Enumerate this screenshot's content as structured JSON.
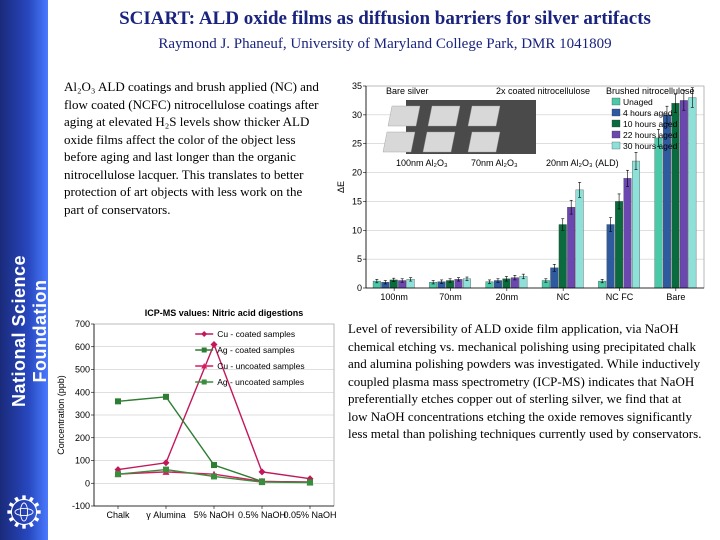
{
  "sidebar": {
    "org": "National Science Foundation"
  },
  "title": "SCIART: ALD oxide films as diffusion barriers for silver artifacts",
  "subtitle": "Raymond J. Phaneuf, University of Maryland College Park, DMR 1041809",
  "para1": "Al₂O₃ ALD coatings and brush applied (NC) and flow coated (NCFC) nitrocellulose coatings after aging at elevated H₂S levels show thicker ALD oxide films affect the color of the object less before aging and last longer than the organic nitrocellulose  lacquer. This translates to better protection of art objects with less work on the part of conservators.",
  "para2": "Level of reversibility of ALD oxide film application, via NaOH chemical etching vs. mechanical polishing using precipitated chalk and alumina polishing powders was investigated. While inductively coupled plasma mass spectrometry (ICP-MS) indicates that NaOH preferentially etches copper out of sterling silver, we find that at low NaOH concentrations etching the oxide removes significantly less metal than polishing techniques currently used by conservators.",
  "chart1": {
    "type": "bar",
    "ylabel": "ΔE",
    "ylim": [
      0,
      35
    ],
    "ytick": 5,
    "top_labels": [
      "Bare silver",
      "2x coated nitrocellulose",
      "Brushed nitrocellulose"
    ],
    "mid_labels": [
      "100nm Al₂O₃",
      "70nm Al₂O₃",
      "20nm Al₂O₃ (ALD)"
    ],
    "categories": [
      "100nm",
      "70nm",
      "20nm",
      "NC",
      "NC FC",
      "Bare"
    ],
    "series": [
      {
        "name": "Unaged",
        "color": "#4ac9a8",
        "values": [
          1.2,
          1.0,
          1.1,
          1.3,
          1.2,
          26
        ],
        "err": [
          0.3,
          0.3,
          0.3,
          0.3,
          0.3,
          1.5
        ]
      },
      {
        "name": "4 hours aged",
        "color": "#2e5aa0",
        "values": [
          1.0,
          1.1,
          1.3,
          3.5,
          11,
          30
        ],
        "err": [
          0.3,
          0.3,
          0.3,
          0.6,
          1.2,
          1.5
        ]
      },
      {
        "name": "10 hours aged",
        "color": "#0a6b3f",
        "values": [
          1.4,
          1.3,
          1.6,
          11,
          15,
          32
        ],
        "err": [
          0.3,
          0.3,
          0.4,
          1.0,
          1.3,
          1.6
        ]
      },
      {
        "name": "22 hours aged",
        "color": "#6b47b0",
        "values": [
          1.3,
          1.5,
          1.8,
          14,
          19,
          32.5
        ],
        "err": [
          0.3,
          0.3,
          0.4,
          1.2,
          1.4,
          1.7
        ]
      },
      {
        "name": "30 hours aged",
        "color": "#8fe0d8",
        "values": [
          1.5,
          1.6,
          2.0,
          17,
          22,
          33
        ],
        "err": [
          0.3,
          0.3,
          0.4,
          1.3,
          1.5,
          1.7
        ]
      }
    ],
    "bg": "#ffffff",
    "grid": "#bfbfbf",
    "photo_overlay": true
  },
  "chart2": {
    "type": "line",
    "title": "ICP-MS values:  Nitric acid digestions",
    "ylabel": "Concentration (ppb)",
    "ylim": [
      -100,
      700
    ],
    "ytick": 100,
    "categories": [
      "Chalk",
      "γ Alumina",
      "5% NaOH",
      "0.5% NaOH",
      "0.05% NaOH"
    ],
    "series": [
      {
        "name": "Cu - coated samples",
        "color": "#c2185b",
        "marker": "diamond",
        "values": [
          60,
          90,
          610,
          50,
          20
        ]
      },
      {
        "name": "Ag - coated samples",
        "color": "#2e7d32",
        "marker": "square",
        "values": [
          360,
          380,
          80,
          8,
          5
        ]
      },
      {
        "name": "Cu - uncoated samples",
        "color": "#d81b60",
        "marker": "triangle",
        "values": [
          40,
          50,
          40,
          8,
          5
        ]
      },
      {
        "name": "Ag  - uncoated samples",
        "color": "#388e3c",
        "marker": "square",
        "values": [
          40,
          60,
          30,
          5,
          3
        ]
      }
    ],
    "bg": "#ffffff",
    "grid": "#bfbfbf"
  }
}
